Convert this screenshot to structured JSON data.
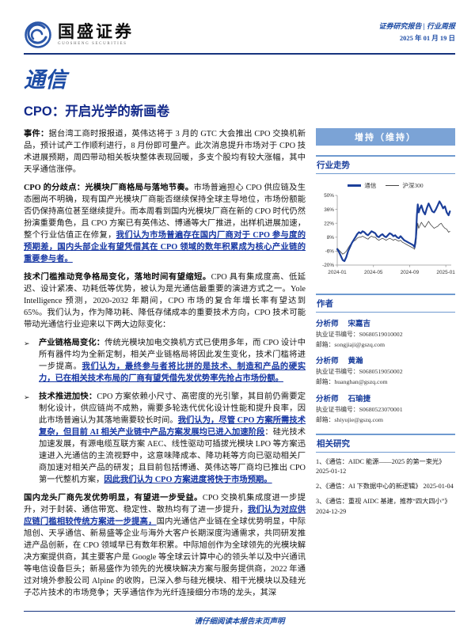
{
  "header": {
    "brand_name": "国盛证券",
    "brand_sub": "GUOSHENG SECURITIES",
    "report_type": "证券研究报告 | 行业周报",
    "date": "2025 年 01 月 19 日"
  },
  "main": {
    "industry": "通信",
    "title": "CPO：开启光学的新画卷",
    "bullet_marker": "➢",
    "paragraphs": [
      {
        "bullet": false,
        "segments": [
          {
            "s": "lead",
            "t": "事件："
          },
          {
            "s": "n",
            "t": "据台湾工商时报报道，英伟达将于 3 月的 GTC 大会推出 CPO 交换机新品，预计试产工作顺利进行，8 月份即可量产。此次消息提升市场对于 CPO 技术进展预期，周四带动相关板块整体表现回暖，多支个股均有较大涨幅，其中天孚通信涨停。"
          }
        ]
      },
      {
        "bullet": false,
        "segments": [
          {
            "s": "lead",
            "t": "CPO 的分歧点：光模块厂商格局与落地节奏。"
          },
          {
            "s": "n",
            "t": "市场普遍担心 CPO 供应链及生态圈尚不明确，现有国产光模块厂商能否继续保持全球主导地位，市场份额能否仍保持高位甚至继续提升。而本周看到国内光模块厂商在新的 CPO 时代仍然扮演重要角色，且 CPO 方案已有英伟达、博通等大厂推进，出样机进展加速，整个行业估值正在修复，"
          },
          {
            "s": "em",
            "t": "我们认为市场普遍存在国内厂商对于 CPO 参与度的预期差，国内头部企业有望凭借其在 CPO 领域的数年积累成为核心产业链的重要参与者。"
          }
        ]
      },
      {
        "bullet": false,
        "segments": [
          {
            "s": "lead",
            "t": "技术门槛推动竞争格局变化，落地时间有望缩短。"
          },
          {
            "s": "n",
            "t": "CPO 具有集成度高、低延迟、设计紧凑、功耗低等优势，被认为是光通信最重要的演进方式之一。Yole Intelligence 预测，2020-2032 年期间，CPO 市场的复合年增长率有望达到 65%。我们认为，作为降功耗、降低存储成本的重要技术方向，CPO 技术可能带动光通信行业迎来以下两大边际变化："
          }
        ]
      },
      {
        "bullet": true,
        "segments": [
          {
            "s": "lead",
            "t": "产业链格局变化："
          },
          {
            "s": "n",
            "t": "传统光模块加电交换机方式已使用多年，而 CPO 设计中所有器件均为全新定制，相关产业链格局将因此发生变化，技术门槛将进一步提高。"
          },
          {
            "s": "em",
            "t": "我们认为，最终参与者将比拼的是技术、制造和产品的硬实力，已在相关技术布局的厂商有望凭借先发优势率先抢占市场份额。"
          }
        ]
      },
      {
        "bullet": true,
        "segments": [
          {
            "s": "lead",
            "t": "技术推进加快："
          },
          {
            "s": "n",
            "t": "CPO 方案依赖小尺寸、高密度的光引擎，其目前仍需要定制化设计，供应链尚不成熟，需要多轮迭代优化设计性能和提升良率，因此市场普遍认为其落地需要较长时间。"
          },
          {
            "s": "em",
            "t": "我们认为，尽管 CPO 方案所需技术复杂，但目前 AI 相关产业链中产品方案发展均已进入加速阶段"
          },
          {
            "s": "n",
            "t": "：硅光技术加速发展，有源电缆互联方案 AEC、线性驱动可插拔光模块 LPO 等方案迅速进入光通信的主流视野中，这意味降成本、降功耗等方向已驱动相关厂商加速对相关产品的研发；且目前包括博通、英伟达等厂商均已推出 CPO 第一代整机方案，"
          },
          {
            "s": "em",
            "t": "因此我们认为 CPO 方案进度将快于市场预期。"
          }
        ]
      },
      {
        "bullet": false,
        "segments": [
          {
            "s": "lead",
            "t": "国内龙头厂商先发优势明显，有望进一步受益。"
          },
          {
            "s": "n",
            "t": "CPO 交换机集成度进一步提升，对于封装、通信带宽、稳定性、散热均有了进一步提升，"
          },
          {
            "s": "em",
            "t": "我们认为对应供应链门槛相较传统方案进一步提高，"
          },
          {
            "s": "n",
            "t": "国内光通信产业链在全球优势明显，中际旭创、天孚通信、新易盛等企业与海外大客户长期深度沟通需求，共同研发推进产品创新，在 CPO 领域早已有数年积累。中际旭创作为全球领先的光模块解决方案提供商，其主要客户是 Google 等全球云计算中心的领头羊以及中兴通讯等电信设备巨头；新易盛作为领先的光模块解决方案与服务提供商，2022 年通过对境外参股公司 Alpine 的收购，已深入参与硅光模块、相干光模块以及硅光子芯片技术的市场竞争；天孚通信作为光纤连接细分市场的龙头，其深"
          }
        ]
      }
    ]
  },
  "sidebar": {
    "rating": "增持（维持）",
    "chart_title": "行业走势",
    "authors_title": "作者",
    "authors": [
      {
        "role": "分析师",
        "name": "宋嘉吉",
        "cert": "执业证书编号：S0680519010002",
        "email": "邮箱：songjiaji@gszq.com"
      },
      {
        "role": "分析师",
        "name": "黄瀚",
        "cert": "执业证书编号：S0680519050002",
        "email": "邮箱：huanghan@gszq.com"
      },
      {
        "role": "分析师",
        "name": "石瑜捷",
        "cert": "执业证书编号：S0680523070001",
        "email": "邮箱：shiyujie@gszq.com"
      }
    ],
    "related_title": "相关研究",
    "related": [
      {
        "num": "1、",
        "title": "《通信：AIDC 能源——2025 的第一束光》",
        "date": "2025-01-12"
      },
      {
        "num": "2、",
        "title": "《通信：AI 下数据中心的新逻辑》",
        "date": "2025-01-04"
      },
      {
        "num": "3、",
        "title": "《通信：重视 AIDC 基建，推荐“四大四小”》",
        "date": "2024-12-29"
      }
    ]
  },
  "footer": {
    "disclaimer": "请仔细阅读本报告末页声明"
  },
  "colors": {
    "accent_navy": "#16337e",
    "accent_blue": "#1d4ca5",
    "emphasis_blue": "#1636a3",
    "badge_bg": "#7ba3d6",
    "series_tongxin": "#1c3f9a",
    "series_hs300": "#444444"
  },
  "chart_data": {
    "type": "line",
    "title": "行业走势",
    "x_unit": "months since 2024-01",
    "x": [
      0,
      0.2,
      0.4,
      0.6,
      0.8,
      1.0,
      1.2,
      1.4,
      1.6,
      1.8,
      2.0,
      2.2,
      2.4,
      2.6,
      2.8,
      3.0,
      3.2,
      3.4,
      3.6,
      3.8,
      4.0,
      4.2,
      4.4,
      4.6,
      4.8,
      5.0,
      5.2,
      5.4,
      5.6,
      5.8,
      6.0,
      6.2,
      6.4,
      6.6,
      6.8,
      7.0,
      7.2,
      7.4,
      7.6,
      7.8,
      8.0,
      8.2,
      8.4,
      8.55,
      8.7,
      8.8,
      8.9,
      9.0,
      9.1,
      9.3,
      9.5,
      9.7,
      9.9,
      10.1,
      10.3,
      10.5,
      10.7,
      10.9,
      11.1,
      11.3,
      11.5,
      11.7,
      11.9,
      12.1,
      12.3,
      12.45
    ],
    "series": [
      {
        "name": "通信",
        "color": "#1c3f9a",
        "stroke_width": 2.2,
        "values": [
          -4,
          -7,
          -11,
          -15,
          -16,
          -12,
          -6,
          -2,
          2,
          5,
          8,
          11,
          13,
          12,
          14,
          13,
          11,
          10,
          12,
          14,
          13,
          12,
          9,
          8,
          10,
          11,
          9,
          8,
          10,
          12,
          11,
          9,
          10,
          8,
          7,
          9,
          7,
          5,
          4,
          3,
          2,
          1,
          0,
          -2,
          8,
          30,
          41,
          33,
          36,
          40,
          34,
          31,
          37,
          42,
          38,
          34,
          33,
          36,
          40,
          44,
          41,
          37,
          39,
          33,
          30,
          34
        ]
      },
      {
        "name": "沪深300",
        "color": "#444444",
        "stroke_width": 0.8,
        "values": [
          -3,
          -5,
          -7,
          -9,
          -8,
          -6,
          -3,
          0,
          2,
          4,
          5,
          7,
          8,
          8,
          9,
          8,
          7,
          6,
          8,
          9,
          8,
          8,
          6,
          5,
          6,
          7,
          6,
          5,
          6,
          7,
          6,
          5,
          6,
          5,
          4,
          5,
          3,
          2,
          1,
          0,
          -1,
          -2,
          -3,
          -4,
          2,
          14,
          22,
          17,
          19,
          23,
          20,
          18,
          21,
          24,
          21,
          19,
          17,
          18,
          19,
          21,
          22,
          19,
          17,
          16,
          13,
          14
        ]
      }
    ],
    "ylim": [
      -20,
      50
    ],
    "yticks": [
      50,
      36,
      22,
      8,
      -6,
      -20
    ],
    "ytick_suffix": "%",
    "xticks": [
      {
        "pos": 0,
        "label": "2024-01"
      },
      {
        "pos": 4,
        "label": "2024-05"
      },
      {
        "pos": 8,
        "label": "2024-09"
      },
      {
        "pos": 12,
        "label": "2025-01"
      }
    ],
    "legend_position": "top",
    "grid": false
  }
}
